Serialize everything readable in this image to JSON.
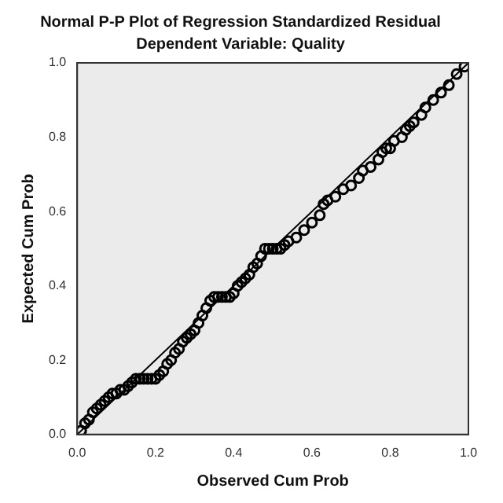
{
  "chart_data": {
    "type": "scatter",
    "title": "Normal P-P Plot of Regression Standardized Residual",
    "subtitle": "Dependent Variable: Quality",
    "xlabel": "Observed Cum Prob",
    "ylabel": "Expected Cum Prob",
    "xlim": [
      0,
      1
    ],
    "ylim": [
      0,
      1
    ],
    "xticks": [
      {
        "value": 0,
        "label": "0.0"
      },
      0.2,
      0.4,
      0.6,
      0.8,
      {
        "value": 1,
        "label": "1.0"
      }
    ],
    "yticks": [
      {
        "value": 0,
        "label": "0.0"
      },
      0.2,
      0.4,
      0.6,
      0.8,
      {
        "value": 1,
        "label": "1.0"
      }
    ],
    "grid": false,
    "legend": false,
    "marker": "circle",
    "series": [
      {
        "type": "scatter",
        "color": "#000000",
        "x": [
          0.01,
          0.02,
          0.03,
          0.04,
          0.05,
          0.06,
          0.07,
          0.08,
          0.09,
          0.1,
          0.11,
          0.12,
          0.13,
          0.14,
          0.15,
          0.16,
          0.17,
          0.18,
          0.19,
          0.2,
          0.21,
          0.22,
          0.23,
          0.24,
          0.25,
          0.26,
          0.27,
          0.28,
          0.29,
          0.3,
          0.31,
          0.32,
          0.33,
          0.34,
          0.35,
          0.36,
          0.37,
          0.38,
          0.39,
          0.4,
          0.41,
          0.42,
          0.43,
          0.44,
          0.45,
          0.46,
          0.47,
          0.48,
          0.49,
          0.5,
          0.51,
          0.52,
          0.53,
          0.54,
          0.56,
          0.58,
          0.6,
          0.62,
          0.63,
          0.64,
          0.66,
          0.68,
          0.7,
          0.72,
          0.73,
          0.75,
          0.77,
          0.78,
          0.79,
          0.8,
          0.81,
          0.83,
          0.84,
          0.85,
          0.86,
          0.88,
          0.89,
          0.91,
          0.93,
          0.95,
          0.97,
          0.99
        ],
        "values": [
          0.01,
          0.03,
          0.04,
          0.06,
          0.07,
          0.08,
          0.09,
          0.1,
          0.11,
          0.11,
          0.12,
          0.12,
          0.13,
          0.14,
          0.15,
          0.15,
          0.15,
          0.15,
          0.15,
          0.15,
          0.16,
          0.17,
          0.19,
          0.2,
          0.22,
          0.23,
          0.25,
          0.26,
          0.27,
          0.28,
          0.3,
          0.32,
          0.34,
          0.36,
          0.37,
          0.37,
          0.37,
          0.37,
          0.37,
          0.38,
          0.4,
          0.41,
          0.42,
          0.43,
          0.45,
          0.46,
          0.48,
          0.5,
          0.5,
          0.5,
          0.5,
          0.5,
          0.51,
          0.52,
          0.53,
          0.55,
          0.57,
          0.59,
          0.62,
          0.63,
          0.64,
          0.66,
          0.67,
          0.69,
          0.71,
          0.72,
          0.74,
          0.76,
          0.77,
          0.77,
          0.79,
          0.8,
          0.82,
          0.83,
          0.84,
          0.86,
          0.88,
          0.9,
          0.92,
          0.94,
          0.97,
          0.99
        ]
      },
      {
        "type": "line",
        "color": "#000000",
        "marker": "none",
        "line_style": "solid",
        "x": [
          0,
          1
        ],
        "values": [
          0,
          1
        ]
      }
    ]
  }
}
